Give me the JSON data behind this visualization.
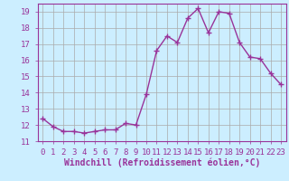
{
  "x": [
    0,
    1,
    2,
    3,
    4,
    5,
    6,
    7,
    8,
    9,
    10,
    11,
    12,
    13,
    14,
    15,
    16,
    17,
    18,
    19,
    20,
    21,
    22,
    23
  ],
  "y": [
    12.4,
    11.9,
    11.6,
    11.6,
    11.5,
    11.6,
    11.7,
    11.7,
    12.1,
    12.0,
    13.9,
    16.6,
    17.5,
    17.1,
    18.6,
    19.2,
    17.7,
    19.0,
    18.9,
    17.1,
    16.2,
    16.1,
    15.2,
    14.5
  ],
  "line_color": "#993399",
  "marker": "+",
  "marker_size": 4,
  "marker_linewidth": 1.0,
  "bg_color": "#cceeff",
  "grid_color": "#aaaaaa",
  "xlabel": "Windchill (Refroidissement éolien,°C)",
  "ylabel": "",
  "ylim": [
    11,
    19.5
  ],
  "xlim": [
    -0.5,
    23.5
  ],
  "yticks": [
    11,
    12,
    13,
    14,
    15,
    16,
    17,
    18,
    19
  ],
  "xticks": [
    0,
    1,
    2,
    3,
    4,
    5,
    6,
    7,
    8,
    9,
    10,
    11,
    12,
    13,
    14,
    15,
    16,
    17,
    18,
    19,
    20,
    21,
    22,
    23
  ],
  "tick_color": "#993399",
  "label_color": "#993399",
  "spine_color": "#993399",
  "font_size": 6.5,
  "xlabel_fontsize": 7.0,
  "linewidth": 1.0
}
